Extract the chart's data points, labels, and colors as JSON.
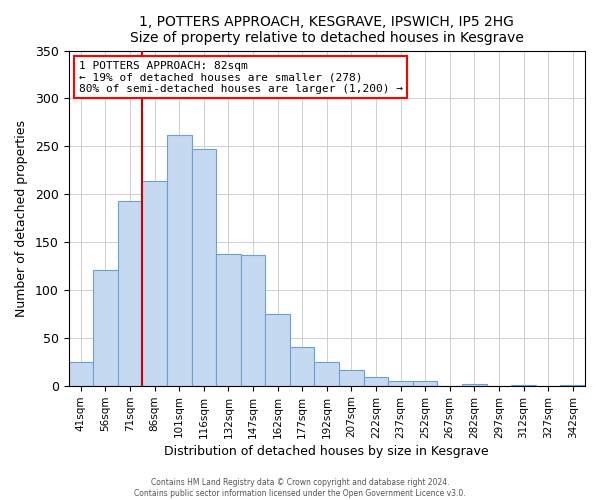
{
  "title": "1, POTTERS APPROACH, KESGRAVE, IPSWICH, IP5 2HG",
  "subtitle": "Size of property relative to detached houses in Kesgrave",
  "xlabel": "Distribution of detached houses by size in Kesgrave",
  "ylabel": "Number of detached properties",
  "bar_labels": [
    "41sqm",
    "56sqm",
    "71sqm",
    "86sqm",
    "101sqm",
    "116sqm",
    "132sqm",
    "147sqm",
    "162sqm",
    "177sqm",
    "192sqm",
    "207sqm",
    "222sqm",
    "237sqm",
    "252sqm",
    "267sqm",
    "282sqm",
    "297sqm",
    "312sqm",
    "327sqm",
    "342sqm"
  ],
  "bar_values": [
    25,
    121,
    193,
    214,
    262,
    247,
    138,
    136,
    75,
    40,
    25,
    16,
    9,
    5,
    5,
    0,
    2,
    0,
    1,
    0,
    1
  ],
  "bar_color": "#c5d9f1",
  "bar_edge_color": "#6aa0d5",
  "vline_color": "#cc0000",
  "ylim": [
    0,
    350
  ],
  "yticks": [
    0,
    50,
    100,
    150,
    200,
    250,
    300,
    350
  ],
  "annotation_title": "1 POTTERS APPROACH: 82sqm",
  "annotation_line1": "← 19% of detached houses are smaller (278)",
  "annotation_line2": "80% of semi-detached houses are larger (1,200) →",
  "footer1": "Contains HM Land Registry data © Crown copyright and database right 2024.",
  "footer2": "Contains public sector information licensed under the Open Government Licence v3.0.",
  "background_color": "#ffffff",
  "grid_color": "#d0d0d0",
  "vline_xindex": 2.5
}
